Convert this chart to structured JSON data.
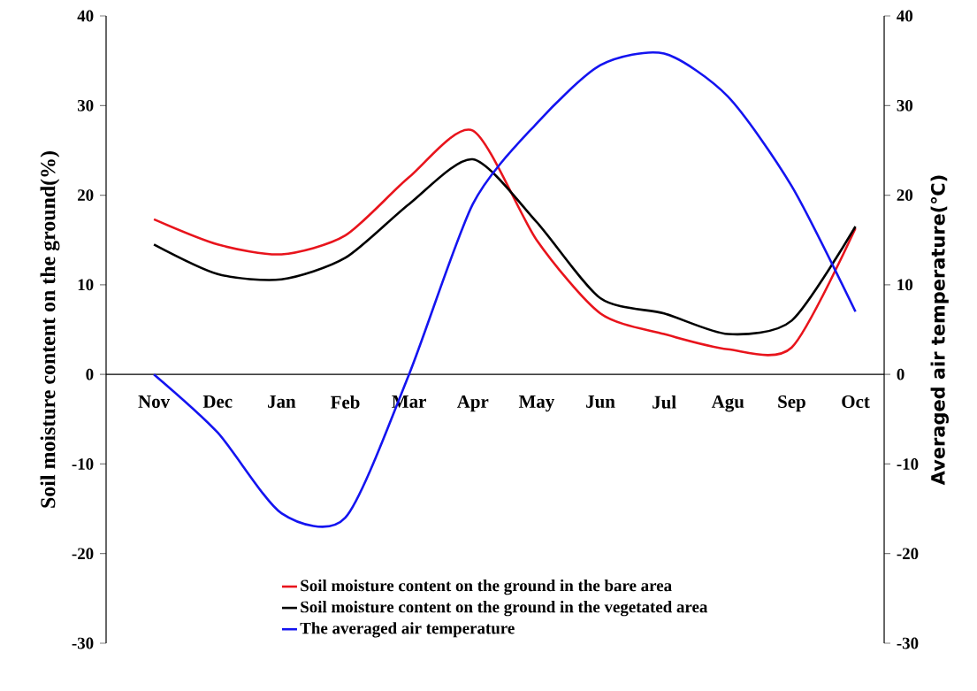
{
  "chart_data": {
    "type": "line",
    "ylabel": "Soil moisture content on the ground(%)",
    "y2label": "Averaged  air temperature(℃)",
    "categories": [
      "Nov",
      "Dec",
      "Jan",
      "Feb",
      "Mar",
      "Apr",
      "May",
      "Jun",
      "Jul",
      "Agu",
      "Sep",
      "Oct"
    ],
    "ylim": [
      -30,
      40
    ],
    "yticks": [
      -30,
      -20,
      -10,
      0,
      10,
      20,
      30,
      40
    ],
    "y2lim": [
      -30,
      40
    ],
    "y2ticks": [
      -30,
      -20,
      -10,
      0,
      10,
      20,
      30,
      40
    ],
    "legend": "bottom",
    "marker": "none",
    "line_style": "solid",
    "series": [
      {
        "name": "Soil moisture content on the ground in the bare area",
        "color": "#e8141c",
        "values": [
          17.3,
          14.5,
          13.4,
          15.5,
          22,
          27.2,
          15,
          6.8,
          4.5,
          2.8,
          3,
          16.3
        ]
      },
      {
        "name": "Soil moisture content on the ground in the vegetated area",
        "color": "#000000",
        "values": [
          14.5,
          11.2,
          10.6,
          13,
          19,
          24,
          17,
          8.5,
          6.8,
          4.5,
          6,
          16.5
        ]
      },
      {
        "name": "The averaged air temperature",
        "color": "#1414f0",
        "axis": "y2",
        "values": [
          0,
          -6.5,
          -15.5,
          -16,
          0,
          19,
          28,
          34.5,
          35.8,
          31,
          21,
          7
        ]
      }
    ]
  }
}
